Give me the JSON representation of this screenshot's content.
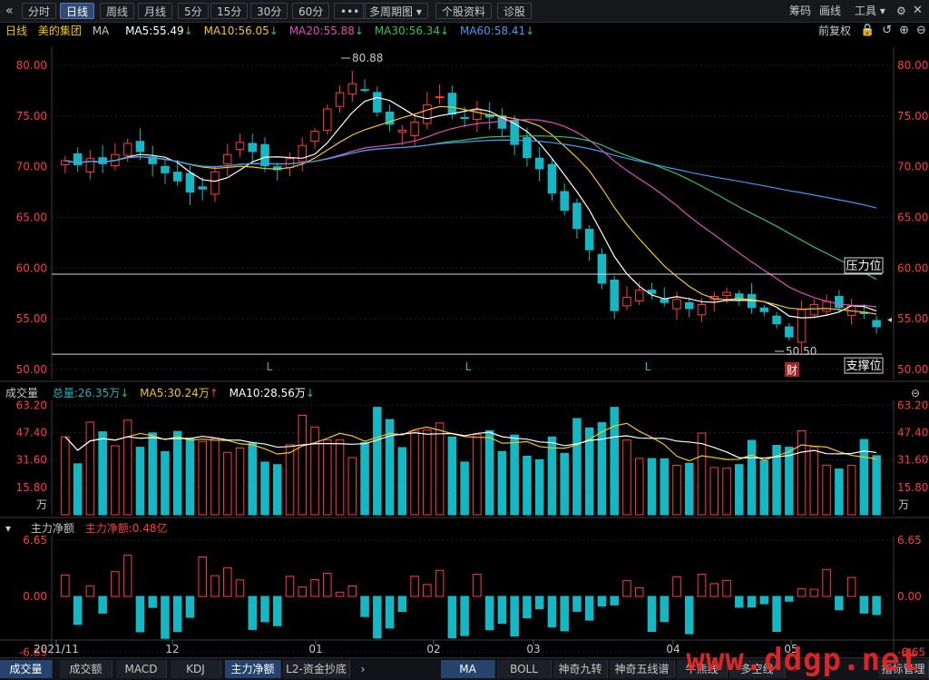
{
  "toolbar": {
    "back_icon": "double-left-chevron-icon",
    "buttons": [
      "分时",
      "日线",
      "周线",
      "月线",
      "5分",
      "15分",
      "30分",
      "60分",
      "•••",
      "多周期图",
      "个股资料",
      "诊股"
    ],
    "active": "日线",
    "right_items": [
      "筹码",
      "画线",
      "工具"
    ],
    "window_icons": [
      "settings-icon",
      "dropdown-icon",
      "close-icon"
    ]
  },
  "header": {
    "period": "日线",
    "stock_name": "美的集团",
    "indicator": "MA",
    "ma": [
      {
        "label": "MA5:55.49",
        "arrow": "↓",
        "color": "#ffffff"
      },
      {
        "label": "MA10:56.05",
        "arrow": "↓",
        "color": "#f5c518"
      },
      {
        "label": "MA20:55.88",
        "arrow": "↓",
        "color": "#e64bbd"
      },
      {
        "label": "MA30:56.34",
        "arrow": "↓",
        "color": "#28c45f"
      },
      {
        "label": "MA60:58.41",
        "arrow": "↓",
        "color": "#3d9df5"
      }
    ],
    "adjust": "前复权"
  },
  "volume_header": {
    "title": "成交量",
    "total": "总量:26.35万",
    "ma5": "MA5:30.24万",
    "ma10": "MA10:28.56万"
  },
  "flow_header": {
    "title": "主力净额",
    "value": "主力净额:0.48亿"
  },
  "colors": {
    "up": "#ff3b3b",
    "down": "#14b8c4",
    "bg": "#000000",
    "grid": "#202328"
  },
  "chart_data": [
    {
      "type": "candlestick",
      "title": "",
      "y_ticks": [
        "80.00",
        "75.00",
        "70.00",
        "65.00",
        "60.00",
        "55.00",
        "50.00"
      ],
      "ylim": [
        49,
        81.8
      ],
      "x_labels": [
        "2021/11",
        "12",
        "01",
        "02",
        "03",
        "04",
        "05"
      ],
      "annotations": {
        "high": "80.88",
        "low": "50.50",
        "resistance_label": "压力位",
        "support_label": "支撑位",
        "resistance_level": 59.4,
        "support_level": 51.5,
        "earnings_marker": "财",
        "l_markers": [
          "L",
          "L",
          "L"
        ]
      },
      "close_samples": [
        70.6,
        70.2,
        70.8,
        70.3,
        71.2,
        72.3,
        71.5,
        70.3,
        69.4,
        68.6,
        67.5,
        67.8,
        69.5,
        71.2,
        72.4,
        71.5,
        70.1,
        69.7,
        70.8,
        72.1,
        73.5,
        75.7,
        77.3,
        78.2,
        77.6,
        75.4,
        74.2,
        73.6,
        74.4,
        76.1,
        76.9,
        75.2,
        74.8,
        75.6,
        74.9,
        73.8,
        72.2,
        70.9,
        69.8,
        67.4,
        65.7,
        63.9,
        61.8,
        58.5,
        55.8,
        57.1,
        57.8,
        57.5,
        56.6,
        56.9,
        56.0,
        56.4,
        57.2,
        57.6,
        56.8,
        56.1,
        55.7,
        54.5,
        53.2,
        55.9,
        56.4,
        56.7,
        56.1,
        56.3,
        55.5,
        54.2
      ],
      "ma_last": {
        "MA5": 55.49,
        "MA10": 56.05,
        "MA20": 55.88,
        "MA30": 56.34,
        "MA60": 58.41
      }
    },
    {
      "type": "bar",
      "title": "成交量",
      "unit": "万",
      "y_ticks": [
        "63.20",
        "47.40",
        "31.60",
        "15.80"
      ],
      "ylim": [
        0,
        66
      ],
      "last_total": 26.35,
      "ma5_last": 30.24,
      "ma10_last": 28.56
    },
    {
      "type": "bar",
      "title": "主力净额",
      "y_ticks": [
        "6.65",
        "0.00",
        "-6.65"
      ],
      "ylim": [
        -7,
        7.2
      ],
      "last_value": 0.48
    }
  ],
  "bottom_tabs_left": [
    "成交量",
    "成交额",
    "MACD",
    "KDJ",
    "主力净额",
    "L2-资金抄底"
  ],
  "bottom_tabs_left_active": "主力净额",
  "bottom_tabs_right": [
    "MA",
    "BOLL",
    "神奇九转",
    "神奇五线谱",
    "牛熊线",
    "多空线",
    "指标管理"
  ],
  "bottom_tabs_right_active": "MA",
  "watermark": "www.ddgp.net"
}
